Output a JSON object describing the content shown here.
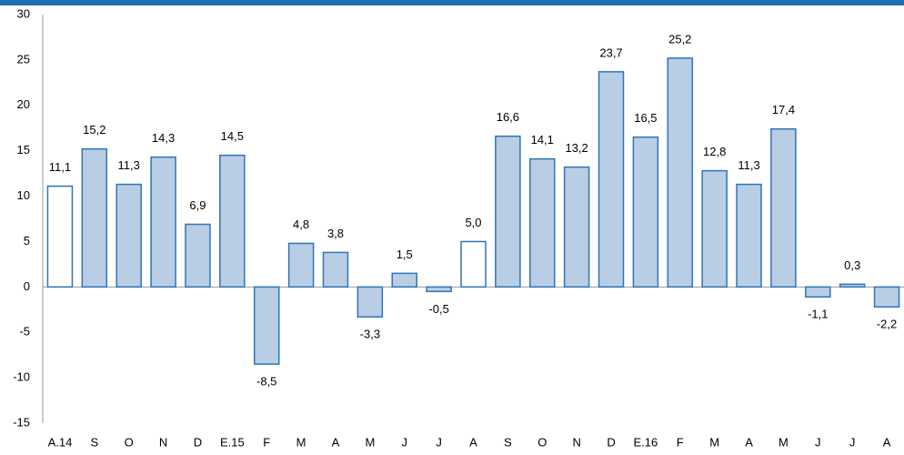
{
  "chart_data": {
    "type": "bar",
    "categories": [
      "A.14",
      "S",
      "O",
      "N",
      "D",
      "E.15",
      "F",
      "M",
      "A",
      "M",
      "J",
      "J",
      "A",
      "S",
      "O",
      "N",
      "D",
      "E.16",
      "F",
      "M",
      "A",
      "M",
      "J",
      "J",
      "A"
    ],
    "values": [
      11.1,
      15.2,
      11.3,
      14.3,
      6.9,
      14.5,
      -8.5,
      4.8,
      3.8,
      -3.3,
      1.5,
      -0.5,
      5.0,
      16.6,
      14.1,
      13.2,
      23.7,
      16.5,
      25.2,
      12.8,
      11.3,
      17.4,
      -1.1,
      0.3,
      -2.2
    ],
    "value_labels": [
      "11,1",
      "15,2",
      "11,3",
      "14,3",
      "6,9",
      "14,5",
      "-8,5",
      "4,8",
      "3,8",
      "-3,3",
      "1,5",
      "-0,5",
      "5,0",
      "16,6",
      "14,1",
      "13,2",
      "23,7",
      "16,5",
      "25,2",
      "12,8",
      "11,3",
      "17,4",
      "-1,1",
      "0,3",
      "-2,2"
    ],
    "colors": [
      "#ffffff",
      "#b9cde5",
      "#b9cde5",
      "#b9cde5",
      "#b9cde5",
      "#b9cde5",
      "#b9cde5",
      "#b9cde5",
      "#b9cde5",
      "#b9cde5",
      "#b9cde5",
      "#b9cde5",
      "#ffffff",
      "#b9cde5",
      "#b9cde5",
      "#b9cde5",
      "#b9cde5",
      "#b9cde5",
      "#b9cde5",
      "#b9cde5",
      "#b9cde5",
      "#b9cde5",
      "#b9cde5",
      "#b9cde5",
      "#b9cde5"
    ],
    "edgecolor": "#2e75b6",
    "ylim": [
      -15,
      30
    ],
    "yticks": [
      -15,
      -10,
      -5,
      0,
      5,
      10,
      15,
      20,
      25,
      30
    ],
    "grid": false
  }
}
